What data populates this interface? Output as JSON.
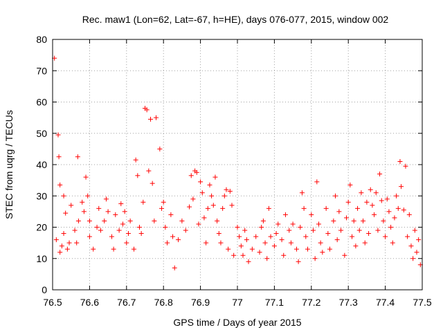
{
  "chart_data": {
    "type": "scatter",
    "title": "Rec. maw1 (Lon=62, Lat=-67, h=HE), days 076-077, 2015, window 002",
    "xlabel": "GPS time / Days of year 2015",
    "ylabel": "STEC from uqrg / TECUs",
    "xlim": [
      76.5,
      77.5
    ],
    "ylim": [
      0,
      80
    ],
    "xticks": [
      "76.5",
      "76.6",
      "76.7",
      "76.8",
      "76.9",
      "77",
      "77.1",
      "77.2",
      "77.3",
      "77.4",
      "77.5"
    ],
    "yticks": [
      "0",
      "10",
      "20",
      "30",
      "40",
      "50",
      "60",
      "70",
      "80"
    ],
    "grid": true,
    "marker": "+",
    "color": "#ff0000",
    "points": [
      [
        76.505,
        74
      ],
      [
        76.515,
        49.5
      ],
      [
        76.517,
        42.5
      ],
      [
        76.52,
        33.5
      ],
      [
        76.53,
        30
      ],
      [
        76.535,
        24.5
      ],
      [
        76.51,
        16
      ],
      [
        76.52,
        12
      ],
      [
        76.525,
        14
      ],
      [
        76.53,
        18
      ],
      [
        76.54,
        13
      ],
      [
        76.545,
        15
      ],
      [
        76.55,
        27
      ],
      [
        76.56,
        19
      ],
      [
        76.565,
        15
      ],
      [
        76.568,
        42.5
      ],
      [
        76.57,
        22
      ],
      [
        76.58,
        28
      ],
      [
        76.585,
        25
      ],
      [
        76.59,
        36
      ],
      [
        76.595,
        30
      ],
      [
        76.6,
        22
      ],
      [
        76.6,
        17
      ],
      [
        76.61,
        13
      ],
      [
        76.62,
        20
      ],
      [
        76.625,
        26
      ],
      [
        76.63,
        19
      ],
      [
        76.64,
        22
      ],
      [
        76.645,
        29
      ],
      [
        76.65,
        25
      ],
      [
        76.66,
        17
      ],
      [
        76.665,
        13
      ],
      [
        76.67,
        24
      ],
      [
        76.68,
        19
      ],
      [
        76.685,
        27.5
      ],
      [
        76.69,
        21
      ],
      [
        76.695,
        25
      ],
      [
        76.7,
        15
      ],
      [
        76.705,
        18
      ],
      [
        76.71,
        22
      ],
      [
        76.72,
        13
      ],
      [
        76.725,
        41.5
      ],
      [
        76.73,
        36.5
      ],
      [
        76.735,
        20
      ],
      [
        76.74,
        18
      ],
      [
        76.745,
        28
      ],
      [
        76.75,
        58
      ],
      [
        76.755,
        57.5
      ],
      [
        76.76,
        38
      ],
      [
        76.765,
        54.5
      ],
      [
        76.77,
        34
      ],
      [
        76.775,
        22
      ],
      [
        76.78,
        55
      ],
      [
        76.79,
        45
      ],
      [
        76.795,
        26
      ],
      [
        76.8,
        28
      ],
      [
        76.805,
        20
      ],
      [
        76.81,
        15
      ],
      [
        76.82,
        24
      ],
      [
        76.825,
        17
      ],
      [
        76.83,
        7
      ],
      [
        76.84,
        16
      ],
      [
        76.85,
        22
      ],
      [
        76.86,
        19
      ],
      [
        76.87,
        26.5
      ],
      [
        76.875,
        36.5
      ],
      [
        76.88,
        29
      ],
      [
        76.885,
        38
      ],
      [
        76.89,
        37.5
      ],
      [
        76.895,
        21
      ],
      [
        76.9,
        34.5
      ],
      [
        76.905,
        31
      ],
      [
        76.91,
        23
      ],
      [
        76.915,
        15
      ],
      [
        76.92,
        26
      ],
      [
        76.925,
        33.5
      ],
      [
        76.93,
        30
      ],
      [
        76.935,
        27
      ],
      [
        76.94,
        36
      ],
      [
        76.945,
        22
      ],
      [
        76.95,
        18
      ],
      [
        76.955,
        15
      ],
      [
        76.96,
        26
      ],
      [
        76.965,
        30
      ],
      [
        76.97,
        32
      ],
      [
        76.975,
        13
      ],
      [
        76.98,
        31.5
      ],
      [
        76.985,
        27
      ],
      [
        76.99,
        11
      ],
      [
        77.0,
        20
      ],
      [
        77.005,
        17
      ],
      [
        77.01,
        14
      ],
      [
        77.015,
        11
      ],
      [
        77.02,
        19
      ],
      [
        77.025,
        16
      ],
      [
        77.03,
        9
      ],
      [
        77.04,
        13
      ],
      [
        77.05,
        17
      ],
      [
        77.06,
        12
      ],
      [
        77.065,
        20
      ],
      [
        77.07,
        22
      ],
      [
        77.075,
        15
      ],
      [
        77.08,
        10
      ],
      [
        77.085,
        26
      ],
      [
        77.09,
        17
      ],
      [
        77.1,
        14
      ],
      [
        77.105,
        18
      ],
      [
        77.11,
        21
      ],
      [
        77.12,
        16
      ],
      [
        77.125,
        11
      ],
      [
        77.13,
        24
      ],
      [
        77.14,
        19
      ],
      [
        77.145,
        15
      ],
      [
        77.15,
        21
      ],
      [
        77.16,
        13
      ],
      [
        77.165,
        9
      ],
      [
        77.17,
        20
      ],
      [
        77.175,
        31
      ],
      [
        77.18,
        26
      ],
      [
        77.185,
        17
      ],
      [
        77.19,
        13
      ],
      [
        77.2,
        24
      ],
      [
        77.205,
        19
      ],
      [
        77.21,
        10
      ],
      [
        77.215,
        34.5
      ],
      [
        77.22,
        21
      ],
      [
        77.225,
        15
      ],
      [
        77.23,
        12
      ],
      [
        77.24,
        26
      ],
      [
        77.245,
        18
      ],
      [
        77.25,
        13
      ],
      [
        77.26,
        22
      ],
      [
        77.265,
        30
      ],
      [
        77.27,
        16
      ],
      [
        77.275,
        25
      ],
      [
        77.28,
        19
      ],
      [
        77.29,
        11
      ],
      [
        77.295,
        23
      ],
      [
        77.3,
        28
      ],
      [
        77.305,
        33.5
      ],
      [
        77.31,
        17
      ],
      [
        77.315,
        22
      ],
      [
        77.32,
        14
      ],
      [
        77.325,
        26
      ],
      [
        77.33,
        19
      ],
      [
        77.335,
        31
      ],
      [
        77.34,
        22
      ],
      [
        77.345,
        15
      ],
      [
        77.35,
        28
      ],
      [
        77.355,
        18
      ],
      [
        77.36,
        32
      ],
      [
        77.365,
        27
      ],
      [
        77.37,
        24
      ],
      [
        77.375,
        31
      ],
      [
        77.38,
        19
      ],
      [
        77.385,
        37
      ],
      [
        77.39,
        28.5
      ],
      [
        77.395,
        22
      ],
      [
        77.4,
        17
      ],
      [
        77.405,
        29
      ],
      [
        77.41,
        25
      ],
      [
        77.415,
        20
      ],
      [
        77.42,
        15
      ],
      [
        77.425,
        23
      ],
      [
        77.43,
        30
      ],
      [
        77.435,
        26
      ],
      [
        77.44,
        41
      ],
      [
        77.443,
        33
      ],
      [
        77.45,
        25.5
      ],
      [
        77.455,
        39.5
      ],
      [
        77.46,
        17
      ],
      [
        77.465,
        24
      ],
      [
        77.47,
        14
      ],
      [
        77.475,
        10
      ],
      [
        77.48,
        19
      ],
      [
        77.485,
        12
      ],
      [
        77.49,
        16
      ],
      [
        77.495,
        8
      ]
    ]
  }
}
